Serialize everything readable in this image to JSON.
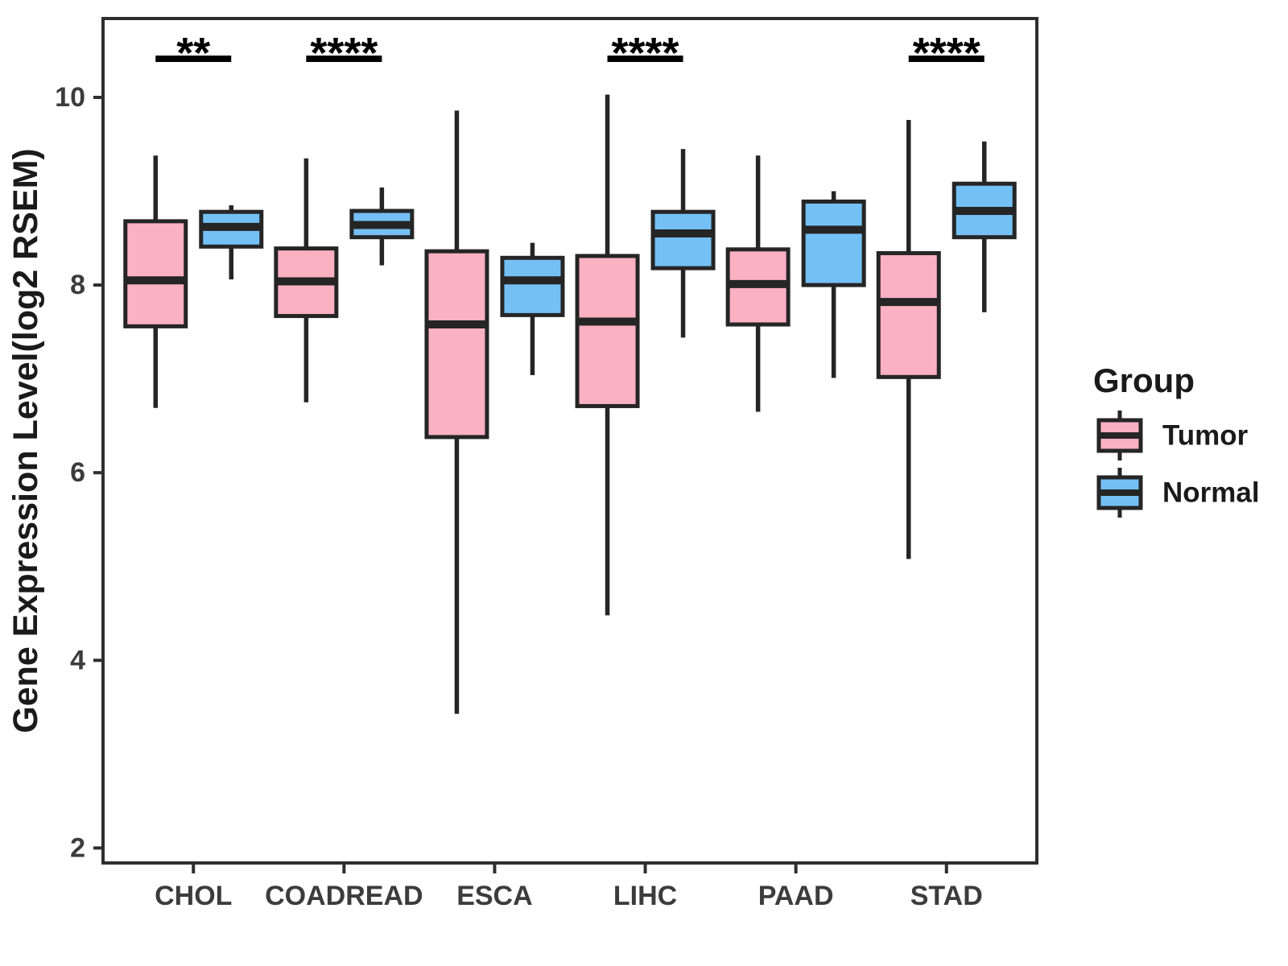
{
  "chart_data": {
    "type": "boxplot",
    "title": "",
    "xlabel": "",
    "ylabel": "Gene Expression Level(log2 RSEM)",
    "yticks": [
      10,
      8,
      6,
      4,
      2
    ],
    "ylim": [
      1.85,
      10.85
    ],
    "grid": false,
    "panel_background": "#FFFFFF",
    "border_color": "#2E2E2E",
    "axis_text_color": "#3C3C3C",
    "line_color": "#252525",
    "categories": [
      "CHOL",
      "COADREAD",
      "ESCA",
      "LIHC",
      "PAAD",
      "STAD"
    ],
    "series": [
      {
        "name": "Tumor",
        "color": "#FAB1C2",
        "boxes": [
          {
            "category": "CHOL",
            "min": 6.69,
            "q1": 7.56,
            "median": 8.05,
            "q3": 8.68,
            "max": 9.38
          },
          {
            "category": "COADREAD",
            "min": 6.75,
            "q1": 7.67,
            "median": 8.04,
            "q3": 8.39,
            "max": 9.35
          },
          {
            "category": "ESCA",
            "min": 3.43,
            "q1": 6.38,
            "median": 7.58,
            "q3": 8.36,
            "max": 9.86
          },
          {
            "category": "LIHC",
            "min": 4.48,
            "q1": 6.71,
            "median": 7.61,
            "q3": 8.31,
            "max": 10.03
          },
          {
            "category": "PAAD",
            "min": 6.65,
            "q1": 7.58,
            "median": 8.01,
            "q3": 8.38,
            "max": 9.38
          },
          {
            "category": "STAD",
            "min": 5.08,
            "q1": 7.02,
            "median": 7.82,
            "q3": 8.34,
            "max": 9.76
          }
        ]
      },
      {
        "name": "Normal",
        "color": "#74C0F5",
        "boxes": [
          {
            "category": "CHOL",
            "min": 8.06,
            "q1": 8.41,
            "median": 8.62,
            "q3": 8.78,
            "max": 8.85
          },
          {
            "category": "COADREAD",
            "min": 8.21,
            "q1": 8.51,
            "median": 8.64,
            "q3": 8.79,
            "max": 9.04
          },
          {
            "category": "ESCA",
            "min": 7.04,
            "q1": 7.68,
            "median": 8.05,
            "q3": 8.29,
            "max": 8.45
          },
          {
            "category": "LIHC",
            "min": 7.44,
            "q1": 8.18,
            "median": 8.55,
            "q3": 8.78,
            "max": 9.45
          },
          {
            "category": "PAAD",
            "min": 7.01,
            "q1": 8.0,
            "median": 8.59,
            "q3": 8.89,
            "max": 9.0
          },
          {
            "category": "STAD",
            "min": 7.71,
            "q1": 8.51,
            "median": 8.79,
            "q3": 9.08,
            "max": 9.53
          }
        ]
      }
    ],
    "annotations": [
      {
        "category": "CHOL",
        "label": "**"
      },
      {
        "category": "COADREAD",
        "label": "****"
      },
      {
        "category": "LIHC",
        "label": "****"
      },
      {
        "category": "STAD",
        "label": "****"
      }
    ],
    "legend": {
      "title": "Group",
      "position": "right",
      "entries": [
        {
          "label": "Tumor",
          "color": "#FAB1C2"
        },
        {
          "label": "Normal",
          "color": "#74C0F5"
        }
      ]
    }
  }
}
